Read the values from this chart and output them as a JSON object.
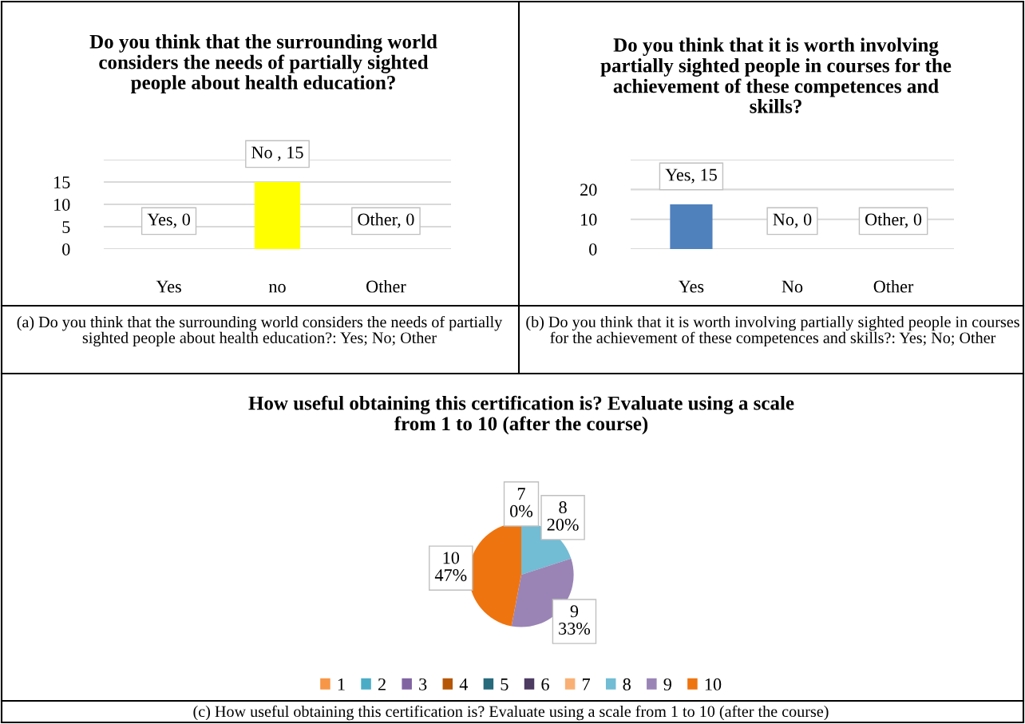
{
  "chart_data": [
    {
      "type": "bar",
      "title": "Do you think that the surrounding world considers the needs of partially sighted people about health education?",
      "categories": [
        "Yes",
        "no",
        "Other"
      ],
      "values": [
        0,
        15,
        0
      ],
      "colors": [
        "#3f6496",
        "#ffff00",
        "#c00000"
      ],
      "value_labels": [
        "Yes, 0",
        "No , 15",
        "Other, 0"
      ],
      "ylim": [
        0,
        20
      ],
      "yticks": [
        0,
        5,
        10,
        15,
        {
          "value": 20,
          "label": null
        }
      ],
      "grid": "y",
      "annotations": [
        "(a) Do you think that the surrounding world considers the needs of partially sighted people about health education?: Yes; No; Other"
      ]
    },
    {
      "type": "bar",
      "title": "Do you think that it is worth involving partially sighted people in courses for the achievement of these competences and skills?",
      "categories": [
        "Yes",
        "No",
        "Other"
      ],
      "values": [
        15,
        0,
        0
      ],
      "colors": [
        "#4f81bd",
        "#c8c800",
        "#c00000"
      ],
      "value_labels": [
        "Yes, 15",
        "No, 0",
        "Other, 0"
      ],
      "ylim": [
        0,
        30
      ],
      "yticks": [
        0,
        10,
        20,
        {
          "value": 30,
          "label": null
        }
      ],
      "grid": "y",
      "annotations": [
        "(b) Do you think that it is worth involving partially sighted people in courses for the achievement of these competences and skills?: Yes; No; Other"
      ]
    },
    {
      "type": "pie",
      "title": "How useful obtaining this certification is? Evaluate using a scale from 1 to 10 (after the course)",
      "categories": [
        "1",
        "2",
        "3",
        "4",
        "5",
        "6",
        "7",
        "8",
        "9",
        "10"
      ],
      "values": [
        0,
        0,
        0,
        0,
        0,
        0,
        0,
        20,
        33,
        47
      ],
      "colors": [
        "#f79646",
        "#4bacc6",
        "#8064a2",
        "#b65708",
        "#276a7c",
        "#4d3b62",
        "#f9b074",
        "#72bcd4",
        "#9a84b6",
        "#ee7410"
      ],
      "value_labels": [
        null,
        null,
        null,
        null,
        null,
        null,
        "7\n0%",
        "8\n20%",
        "9\n33%",
        "10\n47%"
      ],
      "legend": "bottom",
      "annotations": [
        "(c) How useful obtaining this certification is? Evaluate using a scale from 1 to 10 (after the course)"
      ]
    }
  ]
}
